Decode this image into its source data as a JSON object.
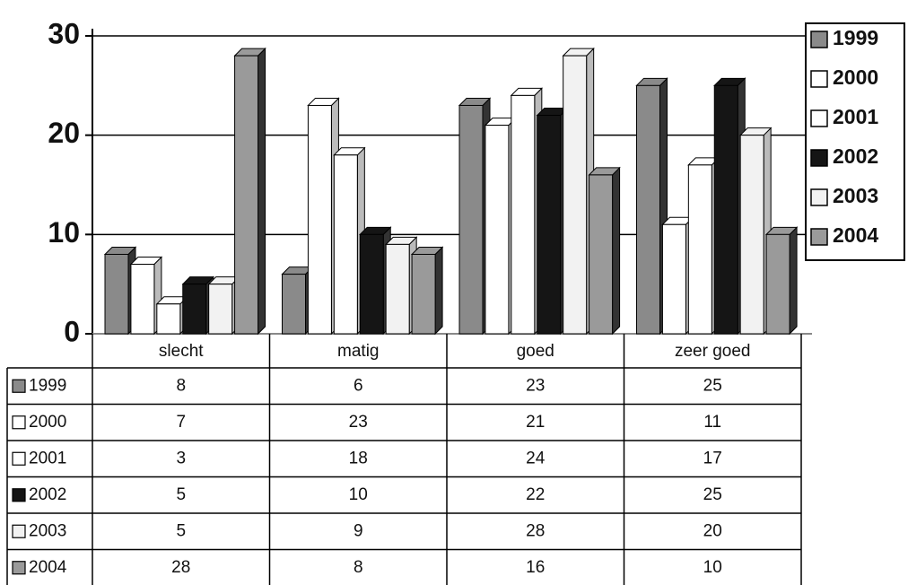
{
  "chart_data": {
    "type": "bar",
    "categories": [
      "slecht",
      "matig",
      "goed",
      "zeer goed"
    ],
    "series": [
      {
        "name": "1999",
        "color": "#8a8a8a",
        "values": [
          8,
          6,
          23,
          25
        ]
      },
      {
        "name": "2000",
        "color": "#ffffff",
        "values": [
          7,
          23,
          21,
          11
        ]
      },
      {
        "name": "2001",
        "color": "#ffffff",
        "values": [
          3,
          18,
          24,
          17
        ]
      },
      {
        "name": "2002",
        "color": "#151515",
        "values": [
          5,
          10,
          22,
          25
        ]
      },
      {
        "name": "2003",
        "color": "#f2f2f2",
        "values": [
          5,
          9,
          28,
          20
        ]
      },
      {
        "name": "2004",
        "color": "#9a9a9a",
        "values": [
          28,
          8,
          16,
          10
        ]
      }
    ],
    "ylim": [
      0,
      30
    ],
    "yticks": [
      0,
      10,
      20,
      30
    ],
    "grid": true,
    "legend": "right"
  }
}
